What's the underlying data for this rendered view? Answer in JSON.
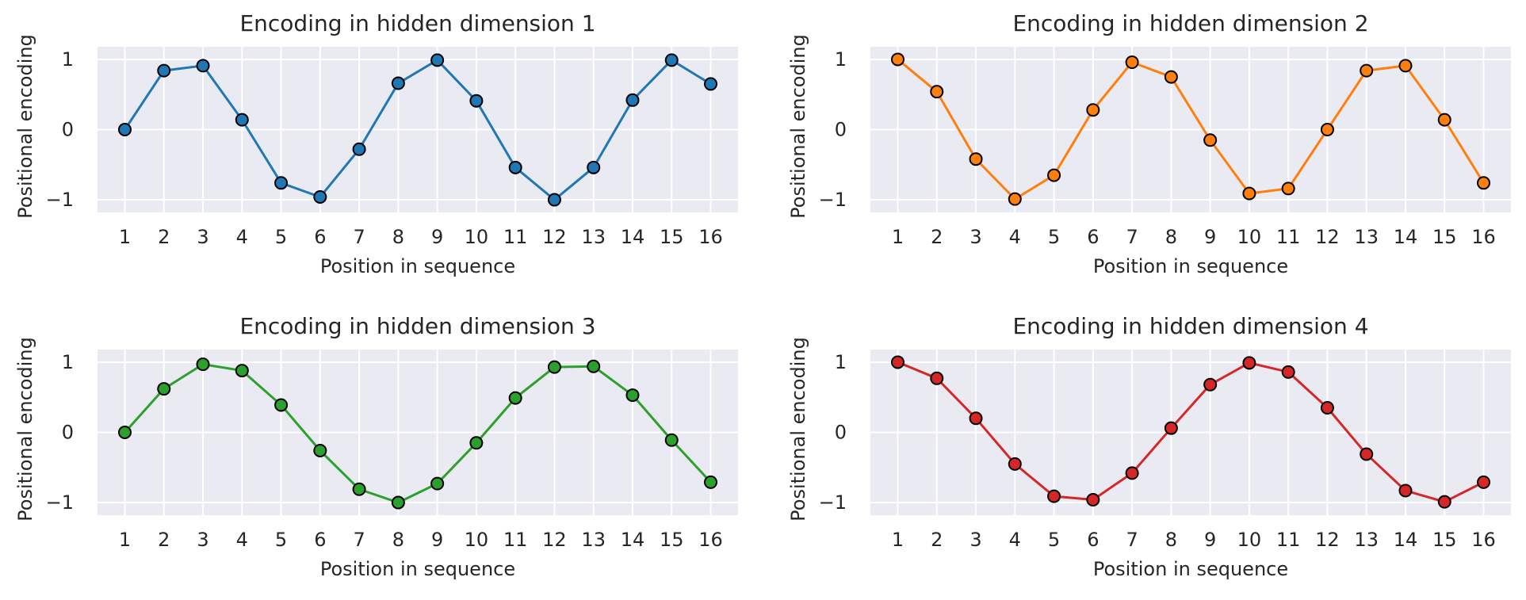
{
  "chart_data": [
    {
      "type": "line",
      "title": "Encoding in hidden dimension 1",
      "xlabel": "Position in sequence",
      "ylabel": "Positional encoding",
      "x": [
        1,
        2,
        3,
        4,
        5,
        6,
        7,
        8,
        9,
        10,
        11,
        12,
        13,
        14,
        15,
        16
      ],
      "yticks": [
        -1,
        0,
        1
      ],
      "ylim": [
        -1.18,
        1.18
      ],
      "grid": true,
      "series": [
        {
          "color": "#1f77b4",
          "marker": "circle",
          "values": [
            0.0,
            0.84,
            0.91,
            0.14,
            -0.76,
            -0.96,
            -0.28,
            0.66,
            0.99,
            0.41,
            -0.54,
            -1.0,
            -0.54,
            0.42,
            0.99,
            0.65
          ]
        }
      ]
    },
    {
      "type": "line",
      "title": "Encoding in hidden dimension 2",
      "xlabel": "Position in sequence",
      "ylabel": "Positional encoding",
      "x": [
        1,
        2,
        3,
        4,
        5,
        6,
        7,
        8,
        9,
        10,
        11,
        12,
        13,
        14,
        15,
        16
      ],
      "yticks": [
        -1,
        0,
        1
      ],
      "ylim": [
        -1.18,
        1.18
      ],
      "grid": true,
      "series": [
        {
          "color": "#ff7f0e",
          "marker": "circle",
          "values": [
            1.0,
            0.54,
            -0.42,
            -0.99,
            -0.65,
            0.28,
            0.96,
            0.75,
            -0.15,
            -0.91,
            -0.84,
            0.0,
            0.84,
            0.91,
            0.14,
            -0.76
          ]
        }
      ]
    },
    {
      "type": "line",
      "title": "Encoding in hidden dimension 3",
      "xlabel": "Position in sequence",
      "ylabel": "Positional encoding",
      "x": [
        1,
        2,
        3,
        4,
        5,
        6,
        7,
        8,
        9,
        10,
        11,
        12,
        13,
        14,
        15,
        16
      ],
      "yticks": [
        -1,
        0,
        1
      ],
      "ylim": [
        -1.18,
        1.18
      ],
      "grid": true,
      "series": [
        {
          "color": "#2ca02c",
          "marker": "circle",
          "values": [
            0.0,
            0.62,
            0.97,
            0.88,
            0.39,
            -0.26,
            -0.81,
            -1.0,
            -0.73,
            -0.15,
            0.49,
            0.93,
            0.94,
            0.53,
            -0.11,
            -0.71
          ]
        }
      ]
    },
    {
      "type": "line",
      "title": "Encoding in hidden dimension 4",
      "xlabel": "Position in sequence",
      "ylabel": "Positional encoding",
      "x": [
        1,
        2,
        3,
        4,
        5,
        6,
        7,
        8,
        9,
        10,
        11,
        12,
        13,
        14,
        15,
        16
      ],
      "yticks": [
        -1,
        0,
        1
      ],
      "ylim": [
        -1.18,
        1.18
      ],
      "grid": true,
      "series": [
        {
          "color": "#d62728",
          "marker": "circle",
          "values": [
            1.0,
            0.77,
            0.2,
            -0.45,
            -0.91,
            -0.96,
            -0.58,
            0.06,
            0.68,
            0.99,
            0.86,
            0.35,
            -0.31,
            -0.83,
            -0.99,
            -0.71
          ]
        }
      ]
    }
  ],
  "style": {
    "axes_facecolor": "#eaeaf2",
    "grid_color": "#ffffff",
    "text_color": "#262626",
    "marker_edge": "#000000"
  }
}
